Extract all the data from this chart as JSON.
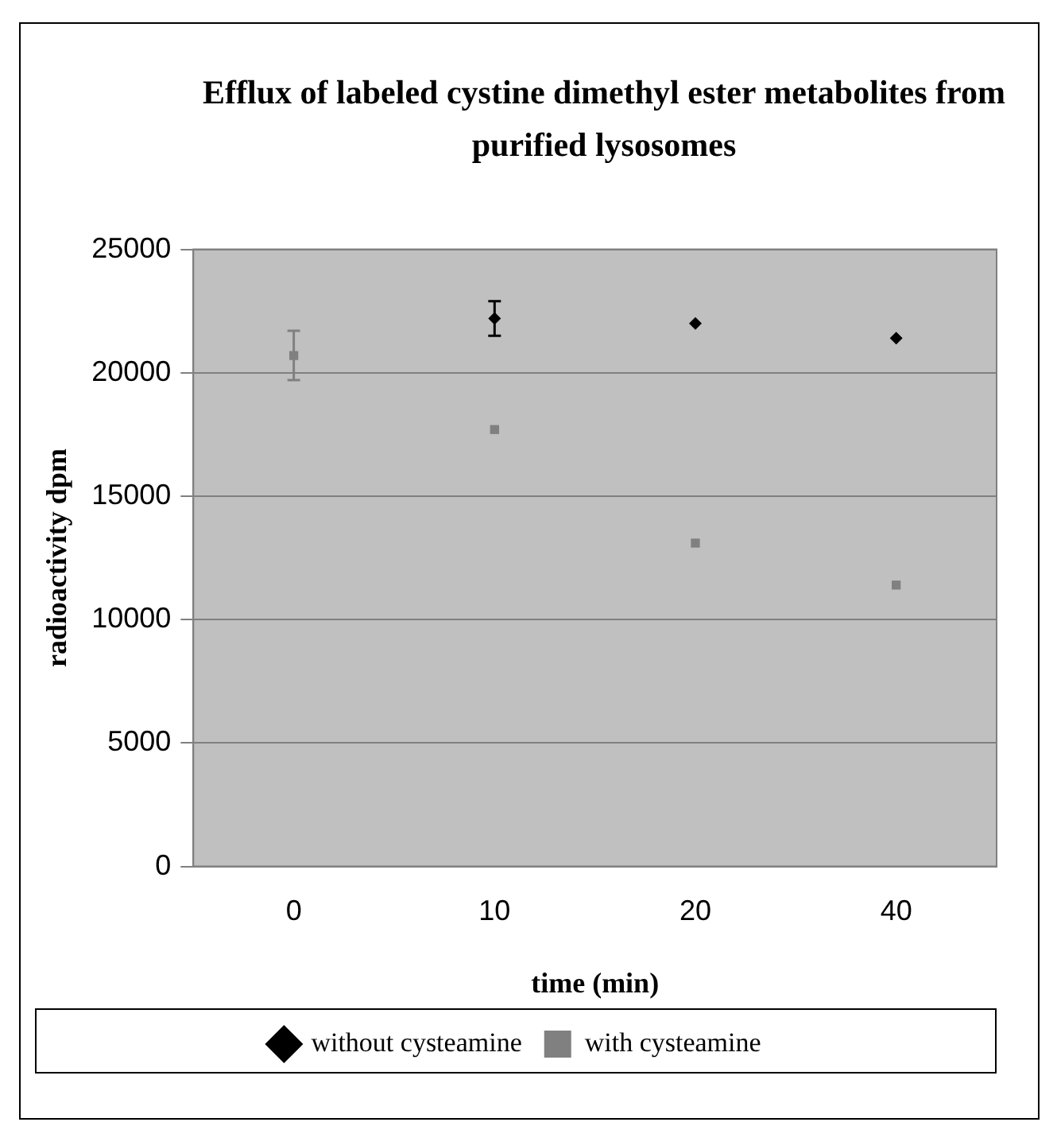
{
  "chart_data": {
    "type": "scatter",
    "title": "Efflux of labeled cystine dimethyl ester metabolites from purified lysosomes",
    "xlabel": "time (min)",
    "ylabel": "radioactivity dpm",
    "categories": [
      "0",
      "10",
      "20",
      "40"
    ],
    "ylim": [
      0,
      25000
    ],
    "yticks": [
      0,
      5000,
      10000,
      15000,
      20000,
      25000
    ],
    "grid": "y",
    "legend": "bottom",
    "series": [
      {
        "name": "without cysteamine",
        "color": "#000000",
        "marker": "diamond",
        "values": [
          null,
          22200,
          22000,
          21400
        ],
        "errors": [
          null,
          700,
          null,
          null
        ]
      },
      {
        "name": "with cysteamine",
        "color": "#808080",
        "marker": "square",
        "values": [
          20700,
          17700,
          13100,
          11400
        ],
        "errors": [
          1000,
          null,
          null,
          null
        ]
      }
    ]
  }
}
